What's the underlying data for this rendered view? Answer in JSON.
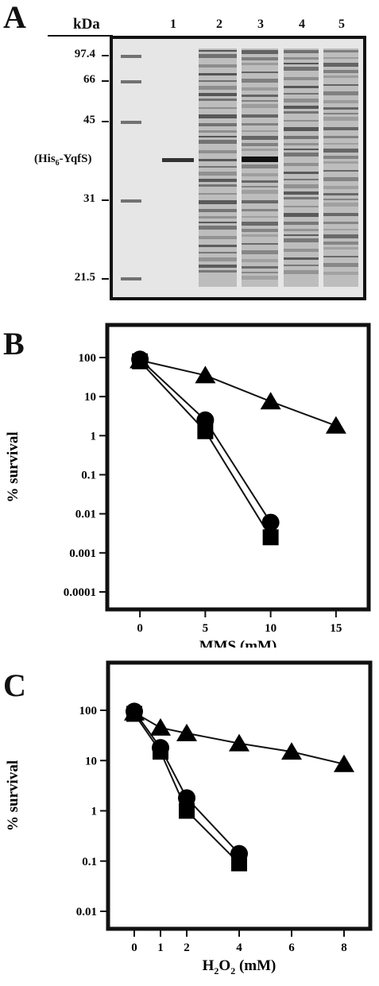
{
  "panel_a": {
    "letter": "A",
    "kda_label": "kDa",
    "lanes": [
      "1",
      "2",
      "3",
      "4",
      "5"
    ],
    "markers": [
      "97.4",
      "66",
      "45",
      "31",
      "21.5"
    ],
    "his_label_prefix": "(His",
    "his_label_sub": "6",
    "his_label_suffix": "-YqfS)"
  },
  "panel_b": {
    "letter": "B",
    "chart_data": {
      "type": "scatter",
      "yscale": "log",
      "xlabel": "MMS (mM)",
      "ylabel": "% survival",
      "x_ticks": [
        "0",
        "5",
        "10",
        "15"
      ],
      "y_ticks": [
        "100",
        "10",
        "1",
        "0.1",
        "0.01",
        "0.001",
        "0.0001"
      ],
      "xlim": [
        -2.5,
        17.5
      ],
      "ylim": [
        0.0001,
        100
      ],
      "series": [
        {
          "marker": "circle",
          "x": [
            0,
            5,
            10
          ],
          "y": [
            90,
            2.5,
            0.006
          ]
        },
        {
          "marker": "square",
          "x": [
            0,
            5,
            10
          ],
          "y": [
            80,
            1.3,
            0.0025
          ]
        },
        {
          "marker": "triangle",
          "x": [
            0,
            5,
            10,
            15
          ],
          "y": [
            85,
            35,
            7.5,
            1.8
          ]
        }
      ]
    }
  },
  "panel_c": {
    "letter": "C",
    "chart_data": {
      "type": "scatter",
      "yscale": "log",
      "xlabel_main": "H",
      "xlabel_sub": "2",
      "xlabel_mid": "O",
      "xlabel_sub2": "2",
      "xlabel_tail": " (mM)",
      "ylabel": "% survival",
      "x_ticks": [
        "0",
        "1",
        "2",
        "4",
        "6",
        "8"
      ],
      "x_tick_values": [
        0,
        1,
        2,
        4,
        6,
        8
      ],
      "y_ticks": [
        "100",
        "10",
        "1",
        "0.1",
        "0.01"
      ],
      "xlim": [
        -1,
        9
      ],
      "ylim": [
        0.01,
        100
      ],
      "series": [
        {
          "marker": "circle",
          "x": [
            0,
            1,
            2,
            4
          ],
          "y": [
            95,
            18,
            1.8,
            0.14
          ]
        },
        {
          "marker": "square",
          "x": [
            0,
            1,
            2,
            4
          ],
          "y": [
            85,
            15,
            1.0,
            0.09
          ]
        },
        {
          "marker": "triangle",
          "x": [
            0,
            1,
            2,
            4,
            6,
            8
          ],
          "y": [
            90,
            45,
            35,
            22,
            15,
            8.5
          ]
        }
      ]
    }
  }
}
